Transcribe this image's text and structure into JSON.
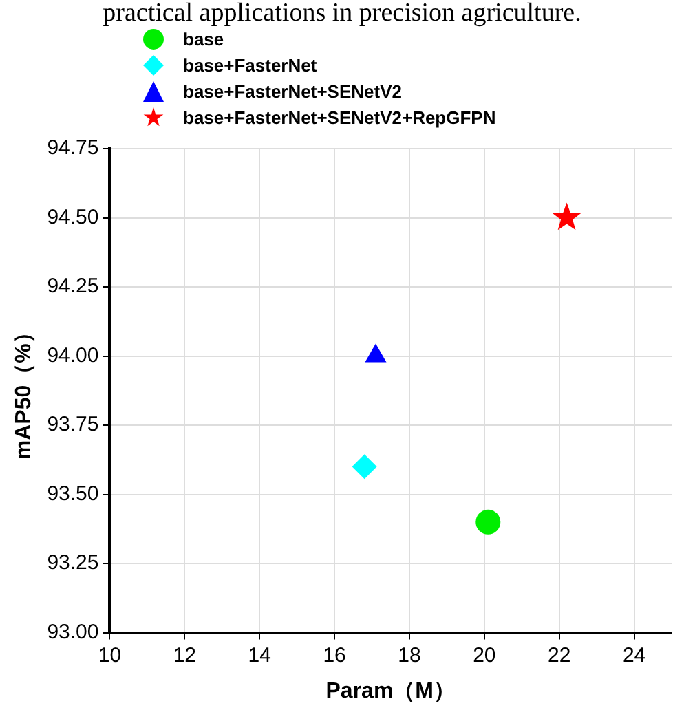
{
  "chart_data": {
    "type": "scatter",
    "annotations": [
      "practical applications in precision agriculture."
    ],
    "xlabel": "Param（M）",
    "ylabel": "mAP50（%）",
    "series": [
      {
        "name": "base",
        "color": "#00ee00",
        "marker": "circle",
        "x": [
          20.1
        ],
        "values": [
          93.4
        ]
      },
      {
        "name": "base+FasterNet",
        "color": "#00ffff",
        "marker": "diamond",
        "x": [
          16.8
        ],
        "values": [
          93.6
        ]
      },
      {
        "name": "base+FasterNet+SENetV2",
        "color": "#0000ff",
        "marker": "triangle",
        "x": [
          17.1
        ],
        "values": [
          94.0
        ]
      },
      {
        "name": "base+FasterNet+SENetV2+RepGFPN",
        "color": "#ff0000",
        "marker": "star",
        "x": [
          22.2
        ],
        "values": [
          94.5
        ]
      }
    ],
    "xlim": [
      10,
      25
    ],
    "xticks": [
      10,
      12,
      14,
      16,
      18,
      20,
      22,
      24
    ],
    "ylim": [
      93,
      94.75
    ],
    "yticks": [
      {
        "value": 93,
        "label": "93.00"
      },
      {
        "value": 93.25,
        "label": "93.25"
      },
      {
        "value": 93.5,
        "label": "93.50"
      },
      {
        "value": 93.75,
        "label": "93.75"
      },
      {
        "value": 94,
        "label": "94.00"
      },
      {
        "value": 94.25,
        "label": "94.25"
      },
      {
        "value": 94.5,
        "label": "94.50"
      },
      {
        "value": 94.75,
        "label": "94.75"
      }
    ],
    "grid": true,
    "legend": "top"
  }
}
